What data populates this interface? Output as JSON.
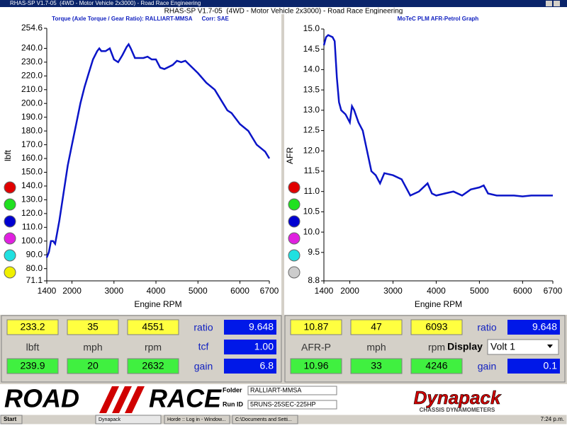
{
  "window_title": "RHAS-SP V1.7-05  (4WD - Motor Vehicle 2x3000) - Road Race Engineering",
  "header_title": "RHAS-SP V1.7-05  (4WD - Motor Vehicle 2x3000) - Road Race Engineering",
  "chart_data": [
    {
      "type": "line",
      "title": "Torque (Axle Torque / Gear Ratio): RALLIART-MMSA      Corr: SAE",
      "x_label": "Engine RPM",
      "y_label": "lbft",
      "x": [
        1400,
        1450,
        1500,
        1550,
        1600,
        1700,
        1800,
        1900,
        2000,
        2100,
        2200,
        2300,
        2400,
        2500,
        2600,
        2650,
        2700,
        2800,
        2900,
        3000,
        3100,
        3200,
        3300,
        3350,
        3400,
        3500,
        3700,
        3800,
        3900,
        4000,
        4100,
        4200,
        4400,
        4500,
        4600,
        4700,
        4800,
        5000,
        5200,
        5400,
        5600,
        5700,
        5800,
        6000,
        6200,
        6300,
        6400,
        6600,
        6700
      ],
      "series": [
        {
          "name": "Torque",
          "color": "#0a14c8",
          "values": [
            88,
            92,
            100,
            100,
            98,
            115,
            135,
            155,
            170,
            185,
            200,
            212,
            222,
            232,
            238,
            240,
            238,
            238,
            240,
            232,
            230,
            235,
            241,
            243,
            240,
            233,
            233,
            234,
            232,
            232,
            226,
            225,
            228,
            231,
            230,
            231,
            228,
            222,
            215,
            210,
            200,
            195,
            193,
            185,
            180,
            175,
            170,
            165,
            160
          ]
        }
      ],
      "xlim": [
        1400,
        6700
      ],
      "xticks": [
        1400,
        2000,
        3000,
        4000,
        5000,
        6000,
        6700
      ],
      "ylim": [
        71.1,
        254.6
      ],
      "yticks": [
        71.1,
        {
          "value": 80,
          "label": "80.0"
        },
        {
          "value": 90,
          "label": "90.0"
        },
        {
          "value": 100,
          "label": "100.0"
        },
        {
          "value": 110,
          "label": "110.0"
        },
        {
          "value": 120,
          "label": "120.0"
        },
        {
          "value": 130,
          "label": "130.0"
        },
        {
          "value": 140,
          "label": "140.0"
        },
        {
          "value": 150,
          "label": "150.0"
        },
        {
          "value": 160,
          "label": "160.0"
        },
        {
          "value": 170,
          "label": "170.0"
        },
        {
          "value": 180,
          "label": "180.0"
        },
        {
          "value": 190,
          "label": "190.0"
        },
        {
          "value": 200,
          "label": "200.0"
        },
        {
          "value": 210,
          "label": "210.0"
        },
        {
          "value": 220,
          "label": "220.0"
        },
        {
          "value": 230,
          "label": "230.0"
        },
        {
          "value": 240,
          "label": "240.0"
        },
        254.6
      ]
    },
    {
      "type": "line",
      "title": "MoTeC PLM AFR-Petrol Graph",
      "x_label": "Engine RPM",
      "y_label": "AFR",
      "x": [
        1400,
        1450,
        1500,
        1600,
        1650,
        1700,
        1750,
        1800,
        1900,
        2000,
        2050,
        2100,
        2200,
        2300,
        2400,
        2500,
        2600,
        2700,
        2800,
        3000,
        3200,
        3400,
        3600,
        3800,
        3900,
        4000,
        4200,
        4400,
        4600,
        4800,
        5000,
        5100,
        5200,
        5400,
        5600,
        5800,
        6000,
        6200,
        6400,
        6700
      ],
      "series": [
        {
          "name": "AFR",
          "color": "#0a14c8",
          "values": [
            14.6,
            14.8,
            14.85,
            14.8,
            14.7,
            13.8,
            13.2,
            13.0,
            12.9,
            12.7,
            13.1,
            13.0,
            12.7,
            12.5,
            12.0,
            11.5,
            11.4,
            11.2,
            11.45,
            11.4,
            11.3,
            10.9,
            11.0,
            11.2,
            10.95,
            10.9,
            10.95,
            11.0,
            10.9,
            11.05,
            11.1,
            11.15,
            10.95,
            10.9,
            10.9,
            10.9,
            10.88,
            10.9,
            10.9,
            10.9
          ]
        }
      ],
      "xlim": [
        1400,
        6700
      ],
      "xticks": [
        1400,
        2000,
        3000,
        4000,
        5000,
        6000,
        6700
      ],
      "ylim": [
        8.8,
        15.0
      ],
      "yticks": [
        8.8,
        9.5,
        {
          "value": 10,
          "label": "10.0"
        },
        10.5,
        {
          "value": 11,
          "label": "11.0"
        },
        11.5,
        {
          "value": 12,
          "label": "12.0"
        },
        12.5,
        {
          "value": 13,
          "label": "13.0"
        },
        13.5,
        {
          "value": 14,
          "label": "14.0"
        },
        14.5,
        {
          "value": 15,
          "label": "15.0"
        }
      ]
    }
  ],
  "panels": [
    {
      "row1": [
        "233.2",
        "35",
        "4551"
      ],
      "ratio_label": "ratio",
      "ratio": "9.648",
      "row2": [
        "lbft",
        "mph",
        "rpm"
      ],
      "mid_label": "tcf",
      "mid": "1.00",
      "row3": [
        "239.9",
        "20",
        "2632"
      ],
      "gain_label": "gain",
      "gain": "6.8"
    },
    {
      "row1": [
        "10.87",
        "47",
        "6093"
      ],
      "ratio_label": "ratio",
      "ratio": "9.648",
      "row2": [
        "AFR-P",
        "mph",
        "rpm"
      ],
      "mid_label": "Display",
      "mid": "Volt 1",
      "row3": [
        "10.96",
        "33",
        "4246"
      ],
      "gain_label": "gain",
      "gain": "0.1"
    }
  ],
  "footer": {
    "logo_left": "ROAD",
    "logo_right": "RACE",
    "folder_label": "Folder",
    "folder": "RALLIART-MMSA",
    "run_label": "Run ID",
    "run": "5RUNS-25SEC-225HP",
    "brand": "Dynapack",
    "brand_sub": "CHASSIS DYNAMOMETERS"
  },
  "taskbar": {
    "start": "Start",
    "items": [
      "Dynapack",
      "Horde :: Log in - Window...",
      "C:\\Documents and Setti..."
    ],
    "clock": "7:24 p.m."
  }
}
